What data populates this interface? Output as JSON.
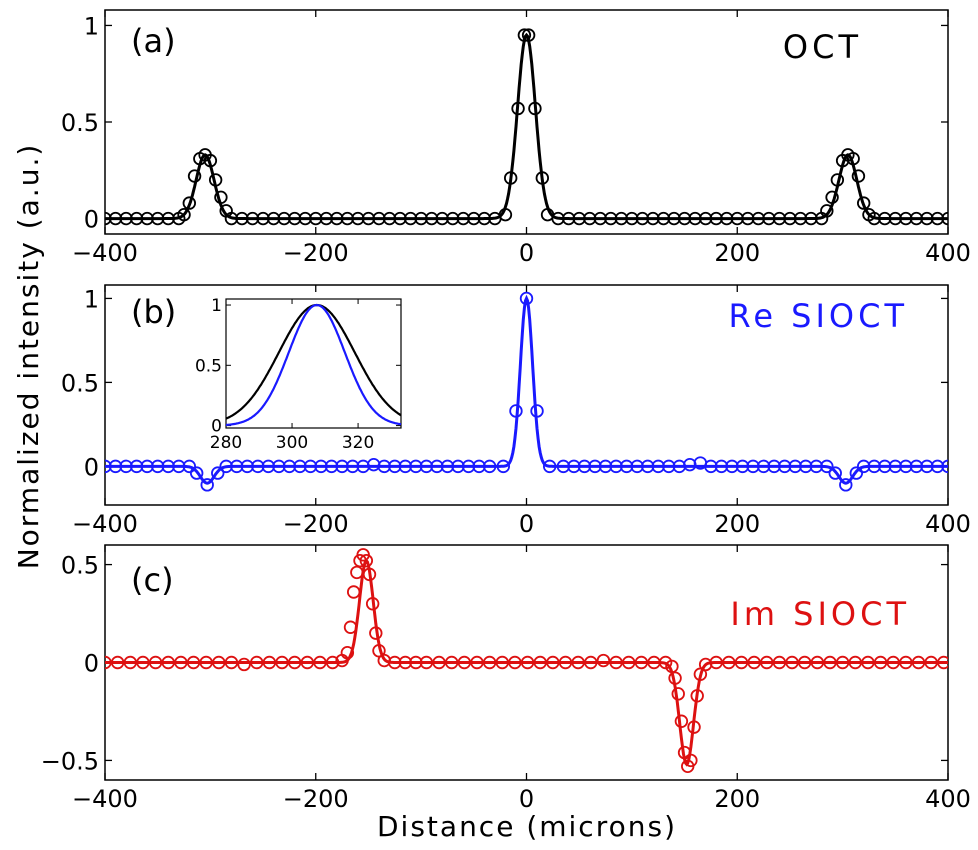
{
  "figure": {
    "ylabel": "Normalized intensity (a.u.)",
    "xlabel": "Distance (microns)"
  },
  "chart_data": [
    {
      "type": "line",
      "panel_label": "(a)",
      "legend": "OCT",
      "color": "#000000",
      "xlim": [
        -400,
        400
      ],
      "ylim": [
        -0.08,
        1.08
      ],
      "x_ticks": [
        "−400",
        "−200",
        "0",
        "200",
        "400"
      ],
      "y_ticks": [
        {
          "v": 0,
          "t": "0"
        },
        {
          "v": 0.5,
          "t": "0.5"
        },
        {
          "v": 1,
          "t": "1"
        }
      ],
      "line_peaks": [
        {
          "x": -305,
          "amp": 0.33,
          "sigma": 8.5
        },
        {
          "x": 0,
          "amp": 0.95,
          "sigma": 8.5
        },
        {
          "x": 305,
          "amp": 0.33,
          "sigma": 8.5
        }
      ],
      "markers": [
        [
          -400,
          0
        ],
        [
          -390,
          0
        ],
        [
          -380,
          0
        ],
        [
          -370,
          0
        ],
        [
          -360,
          0
        ],
        [
          -350,
          0
        ],
        [
          -340,
          0
        ],
        [
          -330,
          0
        ],
        [
          -325,
          0.02
        ],
        [
          -320,
          0.08
        ],
        [
          -315,
          0.22
        ],
        [
          -310,
          0.31
        ],
        [
          -305,
          0.33
        ],
        [
          -300,
          0.3
        ],
        [
          -295,
          0.2
        ],
        [
          -290,
          0.11
        ],
        [
          -285,
          0.04
        ],
        [
          -280,
          0
        ],
        [
          -270,
          0
        ],
        [
          -260,
          0
        ],
        [
          -250,
          0
        ],
        [
          -240,
          0
        ],
        [
          -230,
          0
        ],
        [
          -220,
          0
        ],
        [
          -210,
          0
        ],
        [
          -200,
          0
        ],
        [
          -190,
          0
        ],
        [
          -180,
          0
        ],
        [
          -170,
          0
        ],
        [
          -160,
          0
        ],
        [
          -150,
          0
        ],
        [
          -140,
          0
        ],
        [
          -130,
          0
        ],
        [
          -120,
          0
        ],
        [
          -110,
          0
        ],
        [
          -100,
          0
        ],
        [
          -90,
          0
        ],
        [
          -80,
          0
        ],
        [
          -70,
          0
        ],
        [
          -60,
          0
        ],
        [
          -50,
          0
        ],
        [
          -40,
          0
        ],
        [
          -30,
          0
        ],
        [
          -20,
          0.02
        ],
        [
          -15,
          0.21
        ],
        [
          -8,
          0.57
        ],
        [
          -2,
          0.95
        ],
        [
          2,
          0.95
        ],
        [
          8,
          0.57
        ],
        [
          15,
          0.21
        ],
        [
          20,
          0.02
        ],
        [
          30,
          0
        ],
        [
          40,
          0
        ],
        [
          50,
          0
        ],
        [
          60,
          0
        ],
        [
          70,
          0
        ],
        [
          80,
          0
        ],
        [
          90,
          0
        ],
        [
          100,
          0
        ],
        [
          110,
          0
        ],
        [
          120,
          0
        ],
        [
          130,
          0
        ],
        [
          140,
          0
        ],
        [
          150,
          0
        ],
        [
          160,
          0
        ],
        [
          170,
          0
        ],
        [
          180,
          0
        ],
        [
          190,
          0
        ],
        [
          200,
          0
        ],
        [
          210,
          0
        ],
        [
          220,
          0
        ],
        [
          230,
          0
        ],
        [
          240,
          0
        ],
        [
          250,
          0
        ],
        [
          260,
          0
        ],
        [
          270,
          0
        ],
        [
          280,
          0
        ],
        [
          285,
          0.04
        ],
        [
          290,
          0.11
        ],
        [
          295,
          0.2
        ],
        [
          300,
          0.3
        ],
        [
          305,
          0.33
        ],
        [
          310,
          0.31
        ],
        [
          315,
          0.22
        ],
        [
          320,
          0.08
        ],
        [
          325,
          0.02
        ],
        [
          330,
          0
        ],
        [
          340,
          0
        ],
        [
          350,
          0
        ],
        [
          360,
          0
        ],
        [
          370,
          0
        ],
        [
          380,
          0
        ],
        [
          390,
          0
        ],
        [
          400,
          0
        ]
      ]
    },
    {
      "type": "line",
      "panel_label": "(b)",
      "legend": "Re SIOCT",
      "color": "#1a1aff",
      "xlim": [
        -400,
        400
      ],
      "ylim": [
        -0.23,
        1.08
      ],
      "x_ticks": [
        "−400",
        "−200",
        "0",
        "200",
        "400"
      ],
      "y_ticks": [
        {
          "v": 0,
          "t": "0"
        },
        {
          "v": 0.5,
          "t": "0.5"
        },
        {
          "v": 1,
          "t": "1"
        }
      ],
      "line_peaks": [
        {
          "x": -303,
          "amp": -0.1,
          "sigma": 6.5
        },
        {
          "x": 0,
          "amp": 1.0,
          "sigma": 5.8
        },
        {
          "x": 303,
          "amp": -0.1,
          "sigma": 6.5
        }
      ],
      "markers": [
        [
          -400,
          0
        ],
        [
          -390,
          0
        ],
        [
          -380,
          0
        ],
        [
          -370,
          0
        ],
        [
          -360,
          0
        ],
        [
          -350,
          0
        ],
        [
          -340,
          0
        ],
        [
          -330,
          0
        ],
        [
          -320,
          0
        ],
        [
          -313,
          -0.04
        ],
        [
          -303,
          -0.11
        ],
        [
          -293,
          -0.04
        ],
        [
          -285,
          0
        ],
        [
          -275,
          0
        ],
        [
          -265,
          0
        ],
        [
          -255,
          0
        ],
        [
          -245,
          0
        ],
        [
          -235,
          0
        ],
        [
          -225,
          0
        ],
        [
          -215,
          0
        ],
        [
          -205,
          0
        ],
        [
          -195,
          0
        ],
        [
          -185,
          0
        ],
        [
          -175,
          0
        ],
        [
          -165,
          0
        ],
        [
          -155,
          0
        ],
        [
          -145,
          0.01
        ],
        [
          -135,
          0
        ],
        [
          -125,
          0
        ],
        [
          -115,
          0
        ],
        [
          -105,
          0
        ],
        [
          -95,
          0
        ],
        [
          -85,
          0
        ],
        [
          -75,
          0
        ],
        [
          -65,
          0
        ],
        [
          -55,
          0
        ],
        [
          -45,
          0
        ],
        [
          -35,
          0
        ],
        [
          -22,
          0
        ],
        [
          -10,
          0.33
        ],
        [
          0,
          1.0
        ],
        [
          10,
          0.33
        ],
        [
          22,
          0
        ],
        [
          35,
          0
        ],
        [
          45,
          0
        ],
        [
          55,
          0
        ],
        [
          65,
          0
        ],
        [
          75,
          0
        ],
        [
          85,
          0
        ],
        [
          95,
          0
        ],
        [
          105,
          0
        ],
        [
          115,
          0
        ],
        [
          125,
          0
        ],
        [
          135,
          0
        ],
        [
          145,
          0
        ],
        [
          155,
          0.01
        ],
        [
          165,
          0.02
        ],
        [
          175,
          0
        ],
        [
          185,
          0
        ],
        [
          195,
          0
        ],
        [
          205,
          0
        ],
        [
          215,
          0
        ],
        [
          225,
          0
        ],
        [
          235,
          0
        ],
        [
          245,
          0
        ],
        [
          255,
          0
        ],
        [
          265,
          0
        ],
        [
          275,
          0
        ],
        [
          285,
          0
        ],
        [
          293,
          -0.04
        ],
        [
          303,
          -0.11
        ],
        [
          313,
          -0.04
        ],
        [
          320,
          0
        ],
        [
          330,
          0
        ],
        [
          340,
          0
        ],
        [
          350,
          0
        ],
        [
          360,
          0
        ],
        [
          370,
          0
        ],
        [
          380,
          0
        ],
        [
          390,
          0
        ],
        [
          400,
          0
        ]
      ],
      "inset": {
        "xlim": [
          280,
          333
        ],
        "ylim": [
          -0.02,
          1.05
        ],
        "x_ticks": [
          {
            "v": 280,
            "t": "280"
          },
          {
            "v": 300,
            "t": "300"
          },
          {
            "v": 320,
            "t": "320"
          }
        ],
        "y_ticks": [
          {
            "v": 0,
            "t": "0"
          },
          {
            "v": 0.5,
            "t": "0.5"
          },
          {
            "v": 1,
            "t": "1"
          }
        ],
        "series": [
          {
            "name": "",
            "color": "#000000",
            "center": 307.5,
            "sigma": 11.5,
            "amp": 1.0,
            "offset": 0
          },
          {
            "name": "",
            "color": "#1a1aff",
            "center": 307.5,
            "sigma": 8.5,
            "amp": 1.0,
            "offset": 0
          }
        ]
      }
    },
    {
      "type": "line",
      "panel_label": "(c)",
      "legend": "Im SIOCT",
      "color": "#dd1111",
      "xlim": [
        -400,
        400
      ],
      "ylim": [
        -0.6,
        0.6
      ],
      "x_ticks": [
        "−400",
        "−200",
        "0",
        "200",
        "400"
      ],
      "y_ticks": [
        {
          "v": -0.5,
          "t": "−0.5"
        },
        {
          "v": 0,
          "t": "0"
        },
        {
          "v": 0.5,
          "t": "0.5"
        }
      ],
      "line_peaks": [
        {
          "x": -152,
          "amp": 0.52,
          "sigma": 6.5
        },
        {
          "x": 152,
          "amp": -0.52,
          "sigma": 6.5
        }
      ],
      "markers": [
        [
          -400,
          0
        ],
        [
          -388,
          0
        ],
        [
          -376,
          0
        ],
        [
          -364,
          0
        ],
        [
          -352,
          0
        ],
        [
          -340,
          0
        ],
        [
          -328,
          0
        ],
        [
          -316,
          0
        ],
        [
          -304,
          0
        ],
        [
          -292,
          0
        ],
        [
          -280,
          0
        ],
        [
          -268,
          -0.01
        ],
        [
          -256,
          0
        ],
        [
          -244,
          0
        ],
        [
          -232,
          0
        ],
        [
          -220,
          0
        ],
        [
          -208,
          0
        ],
        [
          -196,
          0
        ],
        [
          -184,
          0
        ],
        [
          -175,
          0.01
        ],
        [
          -170,
          0.05
        ],
        [
          -167,
          0.18
        ],
        [
          -164,
          0.36
        ],
        [
          -161,
          0.46
        ],
        [
          -158,
          0.52
        ],
        [
          -155,
          0.55
        ],
        [
          -152,
          0.52
        ],
        [
          -149,
          0.45
        ],
        [
          -146,
          0.3
        ],
        [
          -143,
          0.15
        ],
        [
          -140,
          0.06
        ],
        [
          -135,
          0.01
        ],
        [
          -125,
          0
        ],
        [
          -115,
          0
        ],
        [
          -105,
          0
        ],
        [
          -95,
          0
        ],
        [
          -83,
          0
        ],
        [
          -71,
          0
        ],
        [
          -59,
          0
        ],
        [
          -47,
          0
        ],
        [
          -35,
          0
        ],
        [
          -23,
          0
        ],
        [
          -11,
          0
        ],
        [
          1,
          0
        ],
        [
          13,
          0
        ],
        [
          25,
          0
        ],
        [
          37,
          0
        ],
        [
          49,
          0
        ],
        [
          61,
          0
        ],
        [
          73,
          0.01
        ],
        [
          85,
          0
        ],
        [
          97,
          0
        ],
        [
          109,
          0
        ],
        [
          121,
          0
        ],
        [
          132,
          0
        ],
        [
          138,
          -0.02
        ],
        [
          141,
          -0.08
        ],
        [
          144,
          -0.16
        ],
        [
          147,
          -0.3
        ],
        [
          150,
          -0.46
        ],
        [
          153,
          -0.53
        ],
        [
          156,
          -0.5
        ],
        [
          159,
          -0.33
        ],
        [
          162,
          -0.17
        ],
        [
          165,
          -0.06
        ],
        [
          170,
          -0.01
        ],
        [
          180,
          0
        ],
        [
          192,
          0
        ],
        [
          204,
          0
        ],
        [
          216,
          0
        ],
        [
          228,
          0
        ],
        [
          240,
          0
        ],
        [
          252,
          0
        ],
        [
          264,
          0
        ],
        [
          276,
          0
        ],
        [
          288,
          0
        ],
        [
          300,
          0
        ],
        [
          312,
          0
        ],
        [
          324,
          0
        ],
        [
          336,
          0
        ],
        [
          348,
          0
        ],
        [
          360,
          0
        ],
        [
          372,
          0
        ],
        [
          384,
          0
        ],
        [
          396,
          0
        ]
      ]
    }
  ]
}
